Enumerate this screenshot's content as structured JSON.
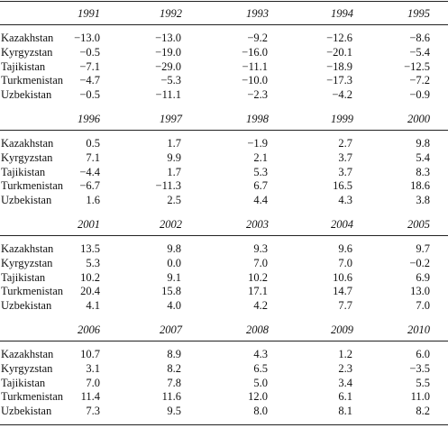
{
  "blocks": [
    {
      "years": [
        "1991",
        "1992",
        "1993",
        "1994",
        "1995"
      ],
      "rows": [
        {
          "country": "Kazakhstan",
          "values": [
            "−13.0",
            "−13.0",
            "−9.2",
            "−12.6",
            "−8.6"
          ]
        },
        {
          "country": "Kyrgyzstan",
          "values": [
            "−0.5",
            "−19.0",
            "−16.0",
            "−20.1",
            "−5.4"
          ]
        },
        {
          "country": "Tajikistan",
          "values": [
            "−7.1",
            "−29.0",
            "−11.1",
            "−18.9",
            "−12.5"
          ]
        },
        {
          "country": "Turkmenistan",
          "values": [
            "−4.7",
            "−5.3",
            "−10.0",
            "−17.3",
            "−7.2"
          ]
        },
        {
          "country": "Uzbekistan",
          "values": [
            "−0.5",
            "−11.1",
            "−2.3",
            "−4.2",
            "−0.9"
          ]
        }
      ]
    },
    {
      "years": [
        "1996",
        "1997",
        "1998",
        "1999",
        "2000"
      ],
      "rows": [
        {
          "country": "Kazakhstan",
          "values": [
            "0.5",
            "1.7",
            "−1.9",
            "2.7",
            "9.8"
          ]
        },
        {
          "country": "Kyrgyzstan",
          "values": [
            "7.1",
            "9.9",
            "2.1",
            "3.7",
            "5.4"
          ]
        },
        {
          "country": "Tajikistan",
          "values": [
            "−4.4",
            "1.7",
            "5.3",
            "3.7",
            "8.3"
          ]
        },
        {
          "country": "Turkmenistan",
          "values": [
            "−6.7",
            "−11.3",
            "6.7",
            "16.5",
            "18.6"
          ]
        },
        {
          "country": "Uzbekistan",
          "values": [
            "1.6",
            "2.5",
            "4.4",
            "4.3",
            "3.8"
          ]
        }
      ]
    },
    {
      "years": [
        "2001",
        "2002",
        "2003",
        "2004",
        "2005"
      ],
      "rows": [
        {
          "country": "Kazakhstan",
          "values": [
            "13.5",
            "9.8",
            "9.3",
            "9.6",
            "9.7"
          ]
        },
        {
          "country": "Kyrgyzstan",
          "values": [
            "5.3",
            "0.0",
            "7.0",
            "7.0",
            "−0.2"
          ]
        },
        {
          "country": "Tajikistan",
          "values": [
            "10.2",
            "9.1",
            "10.2",
            "10.6",
            "6.9"
          ]
        },
        {
          "country": "Turkmenistan",
          "values": [
            "20.4",
            "15.8",
            "17.1",
            "14.7",
            "13.0"
          ]
        },
        {
          "country": "Uzbekistan",
          "values": [
            "4.1",
            "4.0",
            "4.2",
            "7.7",
            "7.0"
          ]
        }
      ]
    },
    {
      "years": [
        "2006",
        "2007",
        "2008",
        "2009",
        "2010"
      ],
      "rows": [
        {
          "country": "Kazakhstan",
          "values": [
            "10.7",
            "8.9",
            "4.3",
            "1.2",
            "6.0"
          ]
        },
        {
          "country": "Kyrgyzstan",
          "values": [
            "3.1",
            "8.2",
            "6.5",
            "2.3",
            "−3.5"
          ]
        },
        {
          "country": "Tajikistan",
          "values": [
            "7.0",
            "7.8",
            "5.0",
            "3.4",
            "5.5"
          ]
        },
        {
          "country": "Turkmenistan",
          "values": [
            "11.4",
            "11.6",
            "12.0",
            "6.1",
            "11.0"
          ]
        },
        {
          "country": "Uzbekistan",
          "values": [
            "7.3",
            "9.5",
            "8.0",
            "8.1",
            "8.2"
          ]
        }
      ]
    }
  ]
}
